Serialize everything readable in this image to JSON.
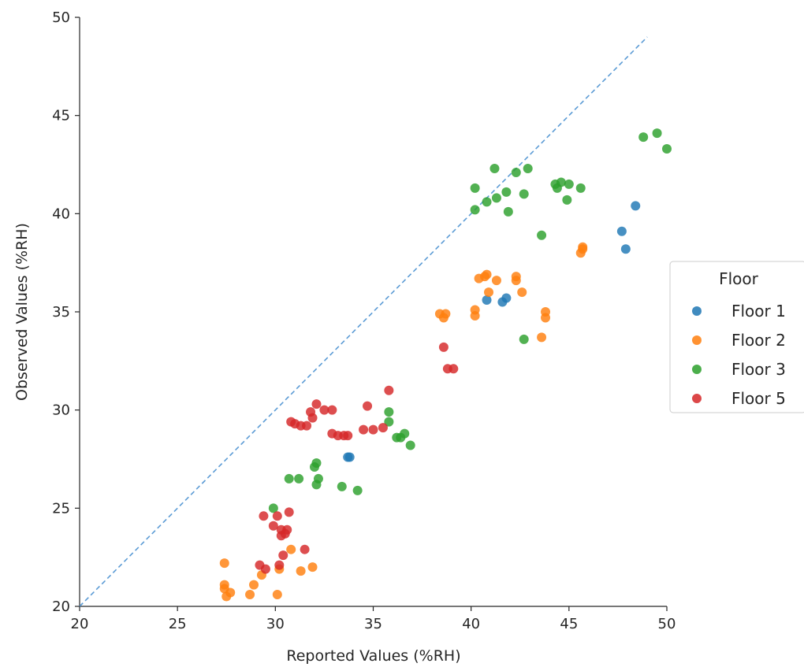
{
  "chart_data": {
    "type": "scatter",
    "xlabel": "Reported Values (%RH)",
    "ylabel": "Observed Values (%RH)",
    "xlim": [
      20,
      50
    ],
    "ylim": [
      20,
      50
    ],
    "x_ticks": [
      "20",
      "25",
      "30",
      "35",
      "40",
      "45",
      "50"
    ],
    "y_ticks": [
      "20",
      "25",
      "30",
      "35",
      "40",
      "45",
      "50"
    ],
    "grid": false,
    "reference_line": {
      "style": "dashed",
      "color": "#5b9bd5",
      "from": [
        20,
        20
      ],
      "to": [
        49,
        49
      ]
    },
    "legend": {
      "title": "Floor",
      "placement": "center-right"
    },
    "series": [
      {
        "name": "Floor 1",
        "color": "#1f77b4",
        "points": [
          [
            33.7,
            27.6
          ],
          [
            33.8,
            27.6
          ],
          [
            40.8,
            35.6
          ],
          [
            41.6,
            35.5
          ],
          [
            41.8,
            35.7
          ],
          [
            47.7,
            39.1
          ],
          [
            47.9,
            38.2
          ],
          [
            48.4,
            40.4
          ]
        ]
      },
      {
        "name": "Floor 2",
        "color": "#ff7f0e",
        "points": [
          [
            27.4,
            22.2
          ],
          [
            27.4,
            21.1
          ],
          [
            27.4,
            20.9
          ],
          [
            27.5,
            20.5
          ],
          [
            27.7,
            20.7
          ],
          [
            28.7,
            20.6
          ],
          [
            28.9,
            21.1
          ],
          [
            29.3,
            21.6
          ],
          [
            30.1,
            20.6
          ],
          [
            30.2,
            21.9
          ],
          [
            30.8,
            22.9
          ],
          [
            31.3,
            21.8
          ],
          [
            31.9,
            22.0
          ],
          [
            38.4,
            34.9
          ],
          [
            38.6,
            34.7
          ],
          [
            38.7,
            34.9
          ],
          [
            40.2,
            34.8
          ],
          [
            40.2,
            35.1
          ],
          [
            40.4,
            36.7
          ],
          [
            40.7,
            36.8
          ],
          [
            40.8,
            36.9
          ],
          [
            40.9,
            36.0
          ],
          [
            41.3,
            36.6
          ],
          [
            42.3,
            36.8
          ],
          [
            42.3,
            36.6
          ],
          [
            42.6,
            36.0
          ],
          [
            43.6,
            33.7
          ],
          [
            43.8,
            34.7
          ],
          [
            43.8,
            35.0
          ],
          [
            45.6,
            38.0
          ],
          [
            45.7,
            38.2
          ],
          [
            45.7,
            38.3
          ]
        ]
      },
      {
        "name": "Floor 3",
        "color": "#2ca02c",
        "points": [
          [
            29.9,
            25.0
          ],
          [
            30.7,
            26.5
          ],
          [
            31.2,
            26.5
          ],
          [
            32.0,
            27.1
          ],
          [
            32.1,
            27.3
          ],
          [
            32.1,
            26.2
          ],
          [
            32.2,
            26.5
          ],
          [
            33.4,
            26.1
          ],
          [
            34.2,
            25.9
          ],
          [
            35.8,
            29.9
          ],
          [
            35.8,
            29.4
          ],
          [
            36.2,
            28.6
          ],
          [
            36.4,
            28.6
          ],
          [
            36.6,
            28.8
          ],
          [
            36.9,
            28.2
          ],
          [
            40.2,
            41.3
          ],
          [
            40.2,
            40.2
          ],
          [
            40.8,
            40.6
          ],
          [
            41.2,
            42.3
          ],
          [
            41.3,
            40.8
          ],
          [
            41.8,
            41.1
          ],
          [
            41.9,
            40.1
          ],
          [
            42.3,
            42.1
          ],
          [
            42.7,
            41.0
          ],
          [
            42.7,
            33.6
          ],
          [
            42.9,
            42.3
          ],
          [
            43.6,
            38.9
          ],
          [
            44.3,
            41.5
          ],
          [
            44.4,
            41.3
          ],
          [
            44.6,
            41.6
          ],
          [
            44.9,
            40.7
          ],
          [
            45.0,
            41.5
          ],
          [
            45.6,
            41.3
          ],
          [
            48.8,
            43.9
          ],
          [
            49.5,
            44.1
          ],
          [
            50.0,
            43.3
          ]
        ]
      },
      {
        "name": "Floor 5",
        "color": "#d62728",
        "points": [
          [
            29.2,
            22.1
          ],
          [
            29.4,
            24.6
          ],
          [
            29.5,
            21.9
          ],
          [
            29.9,
            24.1
          ],
          [
            30.1,
            24.6
          ],
          [
            30.2,
            22.1
          ],
          [
            30.3,
            23.6
          ],
          [
            30.3,
            23.9
          ],
          [
            30.4,
            22.6
          ],
          [
            30.5,
            23.7
          ],
          [
            30.6,
            23.9
          ],
          [
            30.7,
            24.8
          ],
          [
            31.5,
            22.9
          ],
          [
            30.8,
            29.4
          ],
          [
            31.0,
            29.3
          ],
          [
            31.3,
            29.2
          ],
          [
            31.6,
            29.2
          ],
          [
            31.8,
            29.9
          ],
          [
            31.9,
            29.6
          ],
          [
            32.1,
            30.3
          ],
          [
            32.5,
            30.0
          ],
          [
            32.9,
            28.8
          ],
          [
            32.9,
            30.0
          ],
          [
            33.2,
            28.7
          ],
          [
            33.5,
            28.7
          ],
          [
            33.7,
            28.7
          ],
          [
            34.5,
            29.0
          ],
          [
            34.7,
            30.2
          ],
          [
            35.0,
            29.0
          ],
          [
            35.5,
            29.1
          ],
          [
            35.8,
            31.0
          ],
          [
            38.6,
            33.2
          ],
          [
            38.8,
            32.1
          ],
          [
            39.1,
            32.1
          ]
        ]
      }
    ]
  }
}
